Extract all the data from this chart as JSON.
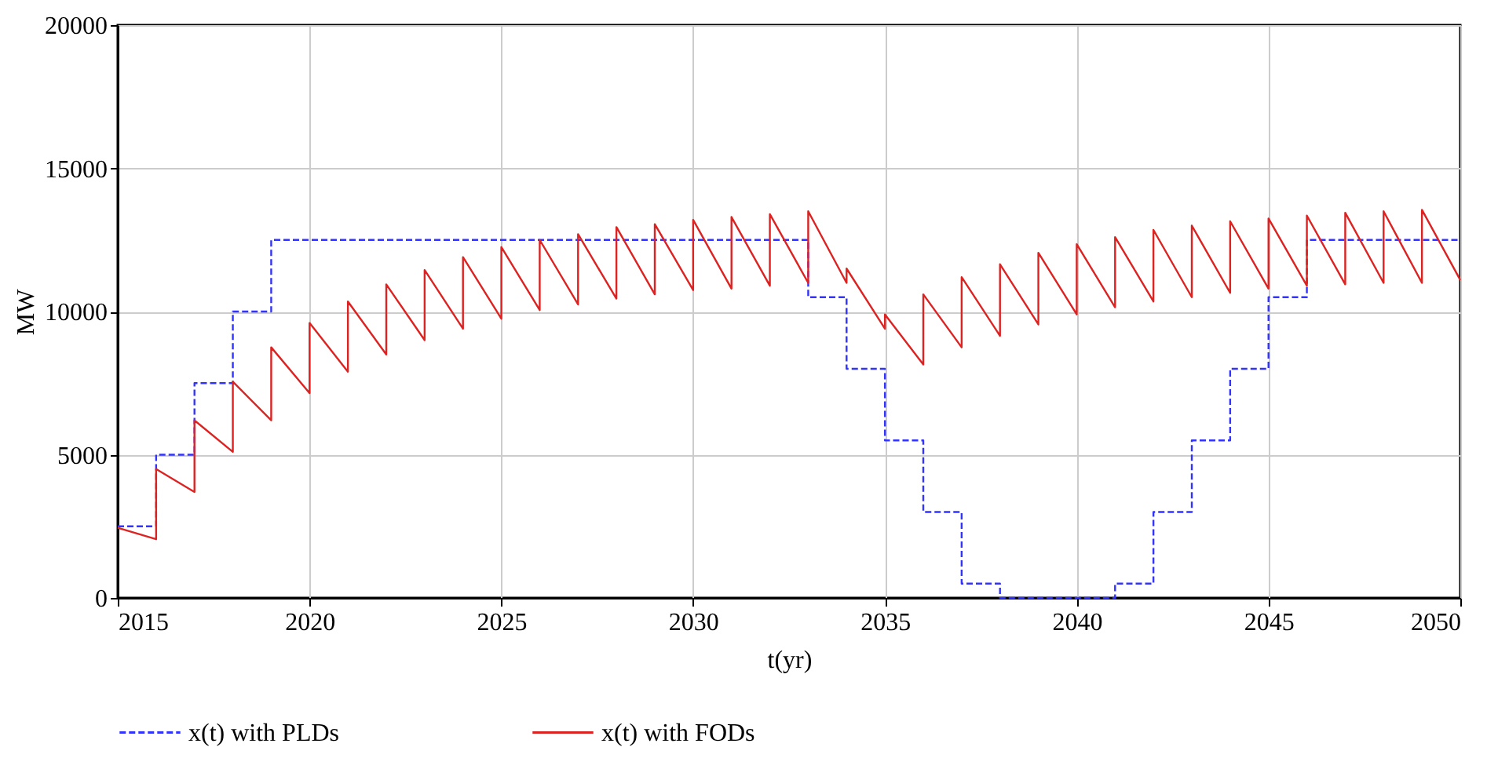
{
  "chart_data": {
    "type": "line",
    "xlabel": "t(yr)",
    "ylabel": "MW",
    "xlim": [
      2015,
      2050
    ],
    "xticks": [
      2015,
      2020,
      2025,
      2030,
      2035,
      2040,
      2045,
      2050
    ],
    "ylim": [
      0,
      20000
    ],
    "yticks": [
      0,
      5000,
      10000,
      15000,
      20000
    ],
    "grid": true,
    "legend": "bottom",
    "marker": "none",
    "series": [
      {
        "name": "x(t) with PLDs",
        "type": "step",
        "color": "#3333ff",
        "line_style": "dashed",
        "x": [
          2015,
          2016,
          2017,
          2018,
          2019,
          2020,
          2021,
          2022,
          2023,
          2024,
          2025,
          2026,
          2027,
          2028,
          2029,
          2030,
          2031,
          2032,
          2033,
          2034,
          2035,
          2036,
          2037,
          2038,
          2039,
          2040,
          2041,
          2042,
          2043,
          2044,
          2045,
          2046,
          2047,
          2048,
          2049,
          2050
        ],
        "values": [
          2500,
          5000,
          7500,
          10000,
          12500,
          12500,
          12500,
          12500,
          12500,
          12500,
          12500,
          12500,
          12500,
          12500,
          12500,
          12500,
          12500,
          12500,
          10500,
          8000,
          5500,
          3000,
          500,
          0,
          0,
          0,
          500,
          3000,
          5500,
          8000,
          10500,
          12500,
          12500,
          12500,
          12500,
          12500
        ]
      },
      {
        "name": "x(t) with FODs",
        "type": "line",
        "color": "#dd2222",
        "line_style": "solid",
        "x": [
          2015,
          2016,
          2016,
          2017,
          2017,
          2018,
          2018,
          2019,
          2019,
          2020,
          2020,
          2021,
          2021,
          2022,
          2022,
          2023,
          2023,
          2024,
          2024,
          2025,
          2025,
          2026,
          2026,
          2027,
          2027,
          2028,
          2028,
          2029,
          2029,
          2030,
          2030,
          2031,
          2031,
          2032,
          2032,
          2033,
          2033,
          2034,
          2034,
          2035,
          2035,
          2036,
          2036,
          2037,
          2037,
          2038,
          2038,
          2039,
          2039,
          2040,
          2040,
          2041,
          2041,
          2042,
          2042,
          2043,
          2043,
          2044,
          2044,
          2045,
          2045,
          2046,
          2046,
          2047,
          2047,
          2048,
          2048,
          2049,
          2049,
          2050
        ],
        "values": [
          2450,
          2050,
          4500,
          3700,
          6200,
          5100,
          7550,
          6200,
          8750,
          7150,
          9600,
          7900,
          10350,
          8500,
          10950,
          9000,
          11450,
          9400,
          11900,
          9750,
          12250,
          10050,
          12500,
          10250,
          12700,
          10450,
          12950,
          10600,
          13050,
          10750,
          13200,
          10800,
          13300,
          10900,
          13400,
          11000,
          13500,
          11000,
          11500,
          9400,
          9900,
          8150,
          10600,
          8750,
          11200,
          9150,
          11650,
          9550,
          12050,
          9900,
          12350,
          10150,
          12600,
          10350,
          12850,
          10500,
          13000,
          10650,
          13150,
          10800,
          13250,
          10900,
          13350,
          10950,
          13450,
          11000,
          13500,
          11000,
          13550,
          11100
        ]
      }
    ]
  }
}
